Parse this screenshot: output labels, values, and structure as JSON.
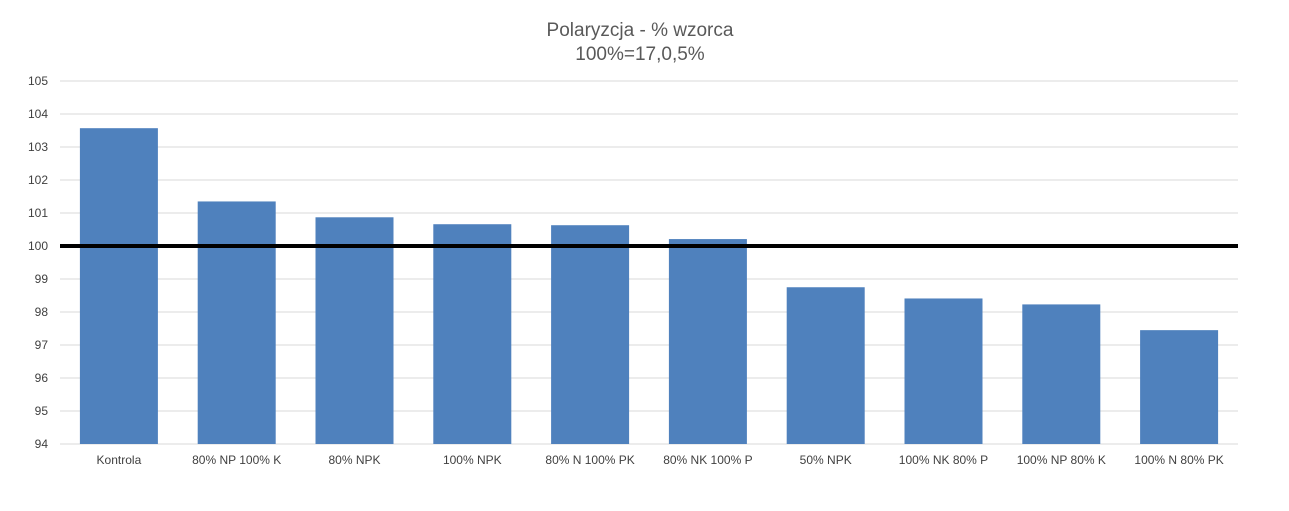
{
  "chart_data": {
    "type": "bar",
    "title": "Polaryzcja - % wzorca",
    "subtitle": "100%=17,0,5%",
    "categories": [
      "Kontrola",
      "80% NP 100% K",
      "80% NPK",
      "100% NPK",
      "80% N 100% PK",
      "80% NK 100% P",
      "50% NPK",
      "100% NK 80% P",
      "100% NP 80% K",
      "100% N 80% PK"
    ],
    "values": [
      103.57,
      101.35,
      100.87,
      100.66,
      100.63,
      100.21,
      98.75,
      98.41,
      98.23,
      97.45
    ],
    "ylim": [
      94,
      105
    ],
    "yticks": [
      94,
      95,
      96,
      97,
      98,
      99,
      100,
      101,
      102,
      103,
      104,
      105
    ],
    "reference_line": 100,
    "grid": true,
    "legend": "none",
    "bar_color": "#4f81bd",
    "reference_line_color": "#000000"
  }
}
